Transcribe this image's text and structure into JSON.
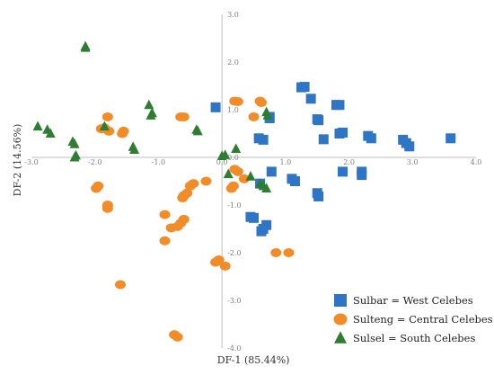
{
  "chart_data": {
    "type": "scatter",
    "title": "",
    "xlabel": "DF-1 (85.44%)",
    "ylabel": "DF-2 (14.56%)",
    "xlim": [
      -3.0,
      4.0
    ],
    "ylim": [
      -4.0,
      3.0
    ],
    "x_ticks": [
      "-3.0",
      "-2.0",
      "-1.0",
      "0.0",
      "1.0",
      "2.0",
      "3.0",
      "4.0"
    ],
    "y_ticks": [
      "3.0",
      "2.0",
      "1.0",
      "0.0",
      "-1.0",
      "-2.0",
      "-3.0",
      "-4.0"
    ],
    "x_tick_values": [
      -3,
      -2,
      -1,
      0,
      1,
      2,
      3,
      4
    ],
    "y_tick_values": [
      3,
      2,
      1,
      0,
      -1,
      -2,
      -3,
      -4
    ],
    "grid": false,
    "legend_position": "bottom-right",
    "series": [
      {
        "name": "Sulbar = West Celebes",
        "marker": "square",
        "color": "#2e75c6",
        "points": [
          [
            1.25,
            1.47
          ],
          [
            1.3,
            1.48
          ],
          [
            1.4,
            1.23
          ],
          [
            1.8,
            1.1
          ],
          [
            1.85,
            1.1
          ],
          [
            1.5,
            0.8
          ],
          [
            1.52,
            0.78
          ],
          [
            1.9,
            0.52
          ],
          [
            1.85,
            0.5
          ],
          [
            2.3,
            0.45
          ],
          [
            2.35,
            0.4
          ],
          [
            2.85,
            0.37
          ],
          [
            2.9,
            0.3
          ],
          [
            2.95,
            0.23
          ],
          [
            3.6,
            0.4
          ],
          [
            1.6,
            0.38
          ],
          [
            0.58,
            0.4
          ],
          [
            0.65,
            0.37
          ],
          [
            0.75,
            0.82
          ],
          [
            0.75,
            0.85
          ],
          [
            -0.1,
            1.05
          ],
          [
            0.78,
            -0.3
          ],
          [
            1.1,
            -0.45
          ],
          [
            1.15,
            -0.5
          ],
          [
            0.6,
            -0.55
          ],
          [
            1.5,
            -0.75
          ],
          [
            1.52,
            -0.82
          ],
          [
            1.9,
            -0.3
          ],
          [
            2.2,
            -0.3
          ],
          [
            2.2,
            -0.37
          ],
          [
            0.45,
            -1.25
          ],
          [
            0.5,
            -1.27
          ],
          [
            0.7,
            -1.42
          ],
          [
            0.65,
            -1.5
          ],
          [
            0.62,
            -1.55
          ]
        ]
      },
      {
        "name": "Sulteng = Central Celebes",
        "marker": "circle",
        "color": "#f28c28",
        "points": [
          [
            0.2,
            1.18
          ],
          [
            0.25,
            1.17
          ],
          [
            0.6,
            1.18
          ],
          [
            0.62,
            1.15
          ],
          [
            0.5,
            0.85
          ],
          [
            -0.6,
            0.85
          ],
          [
            -0.65,
            0.85
          ],
          [
            -1.8,
            0.85
          ],
          [
            -1.9,
            0.6
          ],
          [
            -1.85,
            0.62
          ],
          [
            -1.55,
            0.55
          ],
          [
            -1.57,
            0.5
          ],
          [
            -1.78,
            0.55
          ],
          [
            0.2,
            -0.25
          ],
          [
            0.25,
            -0.3
          ],
          [
            0.35,
            -0.45
          ],
          [
            0.18,
            -0.6
          ],
          [
            0.15,
            -0.65
          ],
          [
            -0.25,
            -0.5
          ],
          [
            -0.45,
            -0.55
          ],
          [
            -0.5,
            -0.6
          ],
          [
            -0.55,
            -0.75
          ],
          [
            -0.6,
            -0.8
          ],
          [
            -0.62,
            -0.85
          ],
          [
            -1.95,
            -0.6
          ],
          [
            -1.98,
            -0.65
          ],
          [
            -1.8,
            -1.0
          ],
          [
            -1.8,
            -1.07
          ],
          [
            -0.9,
            -1.2
          ],
          [
            -0.6,
            -1.3
          ],
          [
            -0.65,
            -1.38
          ],
          [
            -0.7,
            -1.45
          ],
          [
            -0.8,
            -1.48
          ],
          [
            -0.9,
            -1.75
          ],
          [
            0.85,
            -2.0
          ],
          [
            1.05,
            -2.0
          ],
          [
            -0.05,
            -2.15
          ],
          [
            -0.1,
            -2.2
          ],
          [
            0.05,
            -2.28
          ],
          [
            -1.6,
            -2.67
          ],
          [
            -0.75,
            -3.72
          ],
          [
            -0.7,
            -3.77
          ]
        ]
      },
      {
        "name": "Sulsel = South Celebes",
        "marker": "triangle",
        "color": "#2f7d32",
        "points": [
          [
            -2.15,
            2.3
          ],
          [
            -2.15,
            2.33
          ],
          [
            -1.15,
            1.1
          ],
          [
            -1.1,
            0.93
          ],
          [
            -1.12,
            0.88
          ],
          [
            -2.9,
            0.65
          ],
          [
            -2.75,
            0.58
          ],
          [
            -2.7,
            0.5
          ],
          [
            -1.85,
            0.65
          ],
          [
            -1.4,
            0.22
          ],
          [
            -1.38,
            0.16
          ],
          [
            -2.35,
            0.33
          ],
          [
            -2.32,
            0.28
          ],
          [
            -2.3,
            0.04
          ],
          [
            -2.32,
            0.0
          ],
          [
            -0.4,
            0.58
          ],
          [
            -0.38,
            0.55
          ],
          [
            0.7,
            0.95
          ],
          [
            0.72,
            0.88
          ],
          [
            0.0,
            0.03
          ],
          [
            0.05,
            0.05
          ],
          [
            0.1,
            -0.35
          ],
          [
            0.22,
            0.18
          ],
          [
            0.45,
            -0.4
          ],
          [
            0.65,
            -0.6
          ],
          [
            0.7,
            -0.65
          ],
          [
            0.6,
            -0.55
          ]
        ]
      }
    ]
  }
}
